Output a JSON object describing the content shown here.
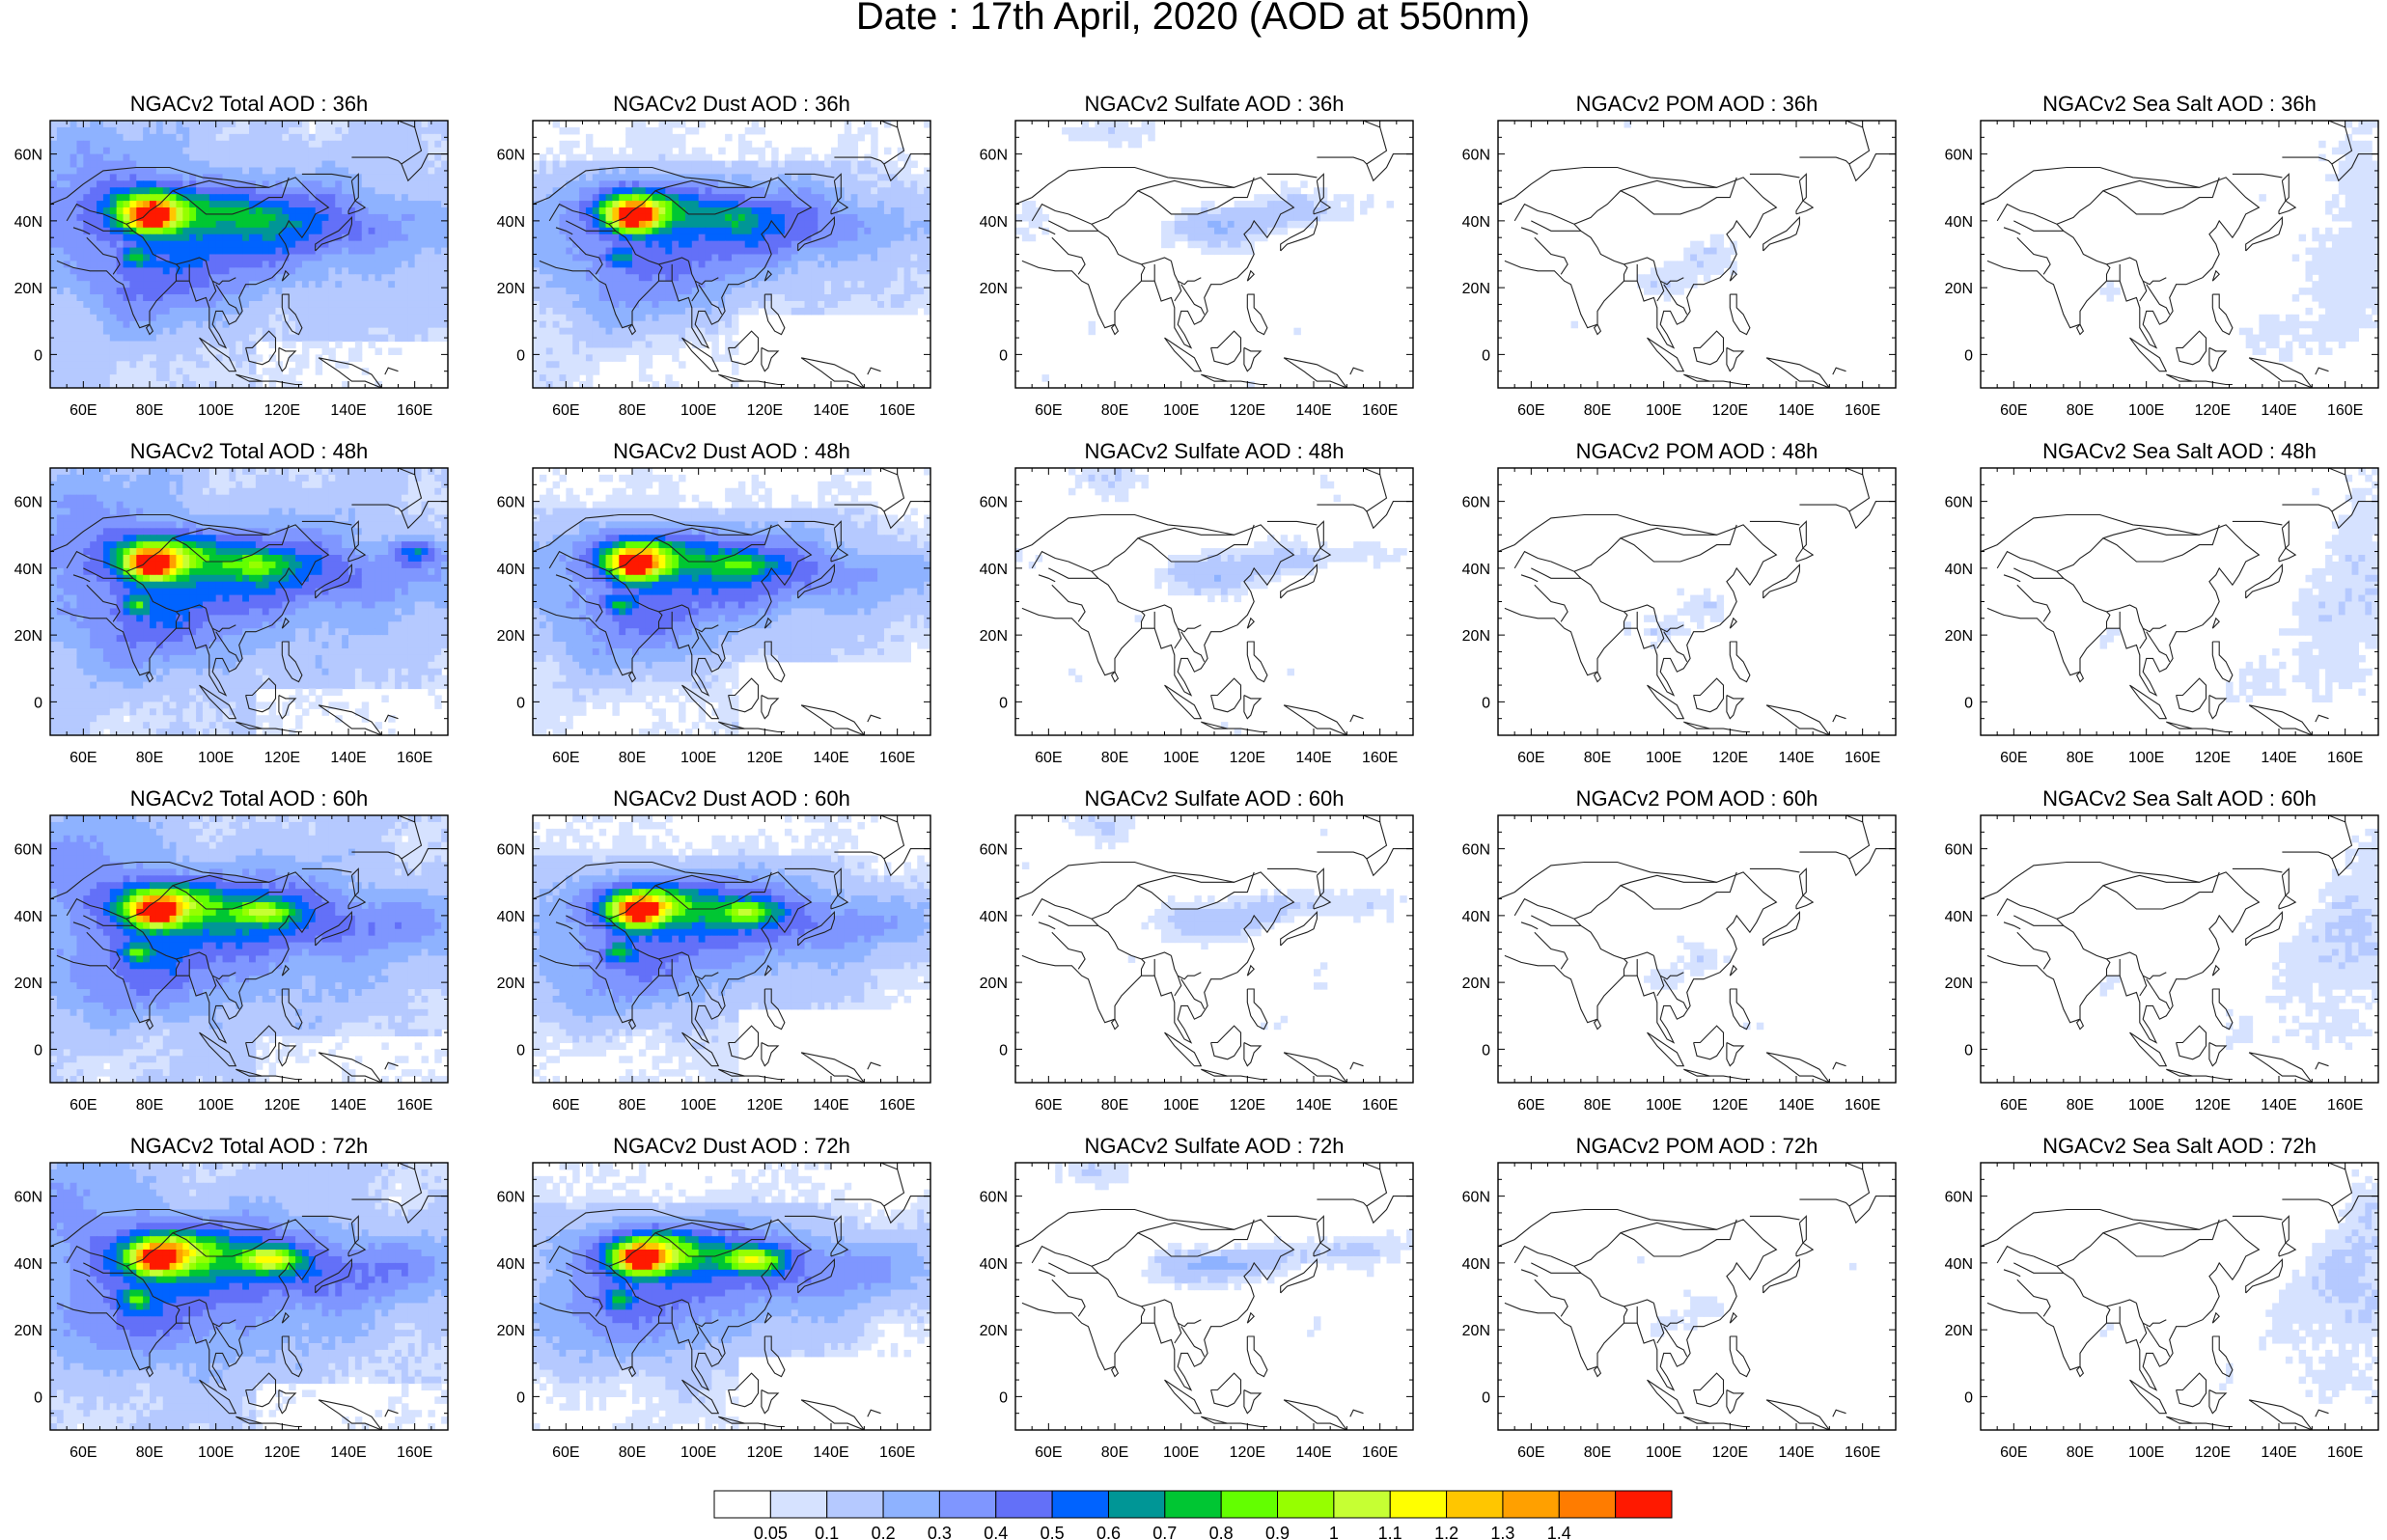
{
  "page_title": "Date : 17th April, 2020 (AOD at 550nm)",
  "axes": {
    "x_ticks": [
      "60E",
      "80E",
      "100E",
      "120E",
      "140E",
      "160E"
    ],
    "y_ticks": [
      "60N",
      "40N",
      "20N",
      "0"
    ]
  },
  "colorbar": {
    "labels": [
      "0.05",
      "0.1",
      "0.2",
      "0.3",
      "0.4",
      "0.5",
      "0.6",
      "0.7",
      "0.8",
      "0.9",
      "1",
      "1.1",
      "1.2",
      "1.3",
      "1.4"
    ],
    "colors": [
      "#ffffff",
      "#d6e2ff",
      "#b5c9ff",
      "#8eb2ff",
      "#7f96ff",
      "#6370f8",
      "#0063ff",
      "#009696",
      "#00c633",
      "#63ff00",
      "#96ff00",
      "#c6ff33",
      "#ffff00",
      "#ffc600",
      "#ffa000",
      "#ff7c00",
      "#ff1900"
    ]
  },
  "panels": [
    {
      "id": "p-r0-c0",
      "title": "NGACv2 Total AOD : 36h",
      "species": "total",
      "lead": 36
    },
    {
      "id": "p-r0-c1",
      "title": "NGACv2 Dust AOD : 36h",
      "species": "dust",
      "lead": 36
    },
    {
      "id": "p-r0-c2",
      "title": "NGACv2 Sulfate AOD : 36h",
      "species": "sulfate",
      "lead": 36
    },
    {
      "id": "p-r0-c3",
      "title": "NGACv2 POM AOD : 36h",
      "species": "pom",
      "lead": 36
    },
    {
      "id": "p-r0-c4",
      "title": "NGACv2 Sea Salt AOD : 36h",
      "species": "seasalt",
      "lead": 36
    },
    {
      "id": "p-r1-c0",
      "title": "NGACv2 Total AOD : 48h",
      "species": "total",
      "lead": 48
    },
    {
      "id": "p-r1-c1",
      "title": "NGACv2 Dust AOD : 48h",
      "species": "dust",
      "lead": 48
    },
    {
      "id": "p-r1-c2",
      "title": "NGACv2 Sulfate AOD : 48h",
      "species": "sulfate",
      "lead": 48
    },
    {
      "id": "p-r1-c3",
      "title": "NGACv2 POM AOD : 48h",
      "species": "pom",
      "lead": 48
    },
    {
      "id": "p-r1-c4",
      "title": "NGACv2 Sea Salt AOD : 48h",
      "species": "seasalt",
      "lead": 48
    },
    {
      "id": "p-r2-c0",
      "title": "NGACv2 Total AOD : 60h",
      "species": "total",
      "lead": 60
    },
    {
      "id": "p-r2-c1",
      "title": "NGACv2 Dust AOD : 60h",
      "species": "dust",
      "lead": 60
    },
    {
      "id": "p-r2-c2",
      "title": "NGACv2 Sulfate AOD : 60h",
      "species": "sulfate",
      "lead": 60
    },
    {
      "id": "p-r2-c3",
      "title": "NGACv2 POM AOD : 60h",
      "species": "pom",
      "lead": 60
    },
    {
      "id": "p-r2-c4",
      "title": "NGACv2 Sea Salt AOD : 60h",
      "species": "seasalt",
      "lead": 60
    },
    {
      "id": "p-r3-c0",
      "title": "NGACv2 Total AOD : 72h",
      "species": "total",
      "lead": 72
    },
    {
      "id": "p-r3-c1",
      "title": "NGACv2 Dust AOD : 72h",
      "species": "dust",
      "lead": 72
    },
    {
      "id": "p-r3-c2",
      "title": "NGACv2 Sulfate AOD : 72h",
      "species": "sulfate",
      "lead": 72
    },
    {
      "id": "p-r3-c3",
      "title": "NGACv2 POM AOD : 72h",
      "species": "pom",
      "lead": 72
    },
    {
      "id": "p-r3-c4",
      "title": "NGACv2 Sea Salt  AOD : 72h",
      "species": "seasalt",
      "lead": 72
    }
  ]
}
